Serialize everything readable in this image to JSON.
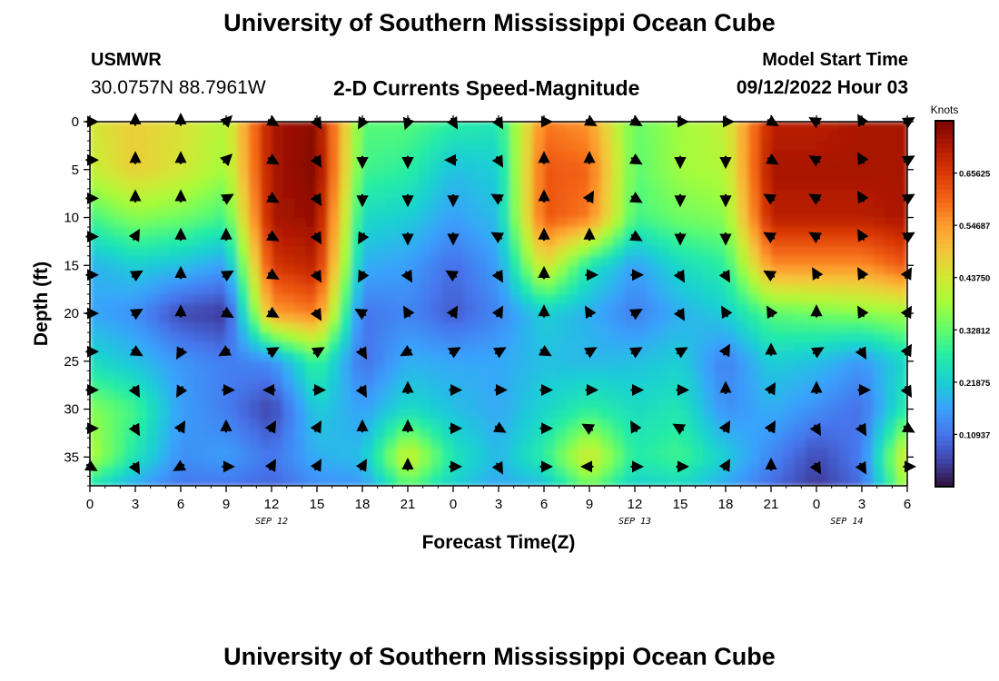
{
  "header": {
    "title": "University of Southern Mississippi Ocean Cube",
    "station": "USMWR",
    "coordinates": "30.0757N  88.7961W",
    "subtitle": "2-D Currents Speed-Magnitude",
    "model_start_label": "Model Start Time",
    "model_start_value": "09/12/2022 Hour 03"
  },
  "footer": {
    "title": "University of Southern Mississippi Ocean Cube"
  },
  "chart_data": {
    "type": "heatmap",
    "title": "2-D Currents Speed-Magnitude",
    "xlabel": "Forecast Time(Z)",
    "ylabel": "Depth (ft)",
    "x_tick_labels": [
      "0",
      "3",
      "6",
      "9",
      "12",
      "15",
      "18",
      "21",
      "0",
      "3",
      "6",
      "9",
      "12",
      "15",
      "18",
      "21",
      "0",
      "3",
      "6"
    ],
    "x_range_hours": [
      0,
      54
    ],
    "date_labels": [
      {
        "label": "SEP 12",
        "hour": 12
      },
      {
        "label": "SEP 13",
        "hour": 36
      },
      {
        "label": "SEP 14",
        "hour": 50
      }
    ],
    "y_ticks": [
      0,
      5,
      10,
      15,
      20,
      25,
      30,
      35
    ],
    "ylim": [
      0,
      38
    ],
    "colorbar": {
      "label": "Knots",
      "tick_values": [
        0.65625,
        0.546875,
        0.4375,
        0.328125,
        0.21875,
        0.109375
      ],
      "tick_labels": [
        "0.65625",
        "0.54687",
        "0.43750",
        "0.32812",
        "0.21875",
        "0.10937"
      ],
      "range": [
        0,
        0.765625
      ],
      "colors": [
        "#30123b",
        "#4145ab",
        "#4675ed",
        "#39a2fc",
        "#1bcfd4",
        "#24eca6",
        "#61fc6c",
        "#a4fc3b",
        "#d1e834",
        "#f3c63a",
        "#fe9b2d",
        "#f36315",
        "#d93806",
        "#b11901",
        "#7a0403"
      ]
    },
    "speed_grid": {
      "depths_ft": [
        0,
        5,
        10,
        15,
        20,
        25,
        30,
        35,
        38
      ],
      "hours": [
        0,
        3,
        6,
        9,
        12,
        15,
        18,
        21,
        24,
        27,
        30,
        33,
        36,
        39,
        42,
        45,
        48,
        51,
        54
      ],
      "values_knots": [
        [
          0.44,
          0.48,
          0.45,
          0.4,
          0.72,
          0.75,
          0.32,
          0.32,
          0.28,
          0.26,
          0.58,
          0.55,
          0.33,
          0.38,
          0.42,
          0.7,
          0.7,
          0.72,
          0.72
        ],
        [
          0.42,
          0.48,
          0.44,
          0.38,
          0.72,
          0.76,
          0.3,
          0.28,
          0.2,
          0.22,
          0.62,
          0.6,
          0.32,
          0.38,
          0.4,
          0.72,
          0.72,
          0.72,
          0.72
        ],
        [
          0.3,
          0.36,
          0.34,
          0.3,
          0.72,
          0.74,
          0.24,
          0.22,
          0.16,
          0.2,
          0.62,
          0.58,
          0.3,
          0.34,
          0.36,
          0.7,
          0.7,
          0.7,
          0.72
        ],
        [
          0.18,
          0.22,
          0.2,
          0.16,
          0.66,
          0.7,
          0.18,
          0.16,
          0.1,
          0.16,
          0.46,
          0.26,
          0.16,
          0.24,
          0.28,
          0.56,
          0.56,
          0.56,
          0.62
        ],
        [
          0.17,
          0.14,
          0.06,
          0.04,
          0.54,
          0.58,
          0.11,
          0.13,
          0.08,
          0.13,
          0.22,
          0.18,
          0.12,
          0.18,
          0.22,
          0.32,
          0.34,
          0.36,
          0.38
        ],
        [
          0.24,
          0.2,
          0.15,
          0.12,
          0.14,
          0.3,
          0.1,
          0.18,
          0.17,
          0.17,
          0.2,
          0.19,
          0.2,
          0.22,
          0.12,
          0.22,
          0.2,
          0.15,
          0.24
        ],
        [
          0.36,
          0.3,
          0.16,
          0.12,
          0.05,
          0.22,
          0.16,
          0.24,
          0.2,
          0.17,
          0.23,
          0.28,
          0.24,
          0.26,
          0.14,
          0.18,
          0.14,
          0.1,
          0.28
        ],
        [
          0.4,
          0.26,
          0.14,
          0.16,
          0.11,
          0.18,
          0.2,
          0.44,
          0.26,
          0.19,
          0.28,
          0.45,
          0.27,
          0.3,
          0.22,
          0.13,
          0.06,
          0.12,
          0.46
        ],
        [
          0.26,
          0.17,
          0.11,
          0.11,
          0.09,
          0.14,
          0.15,
          0.32,
          0.22,
          0.17,
          0.2,
          0.34,
          0.22,
          0.24,
          0.17,
          0.1,
          0.04,
          0.1,
          0.4
        ]
      ]
    },
    "current_vectors": {
      "depths_ft": [
        0,
        4,
        8,
        12,
        16,
        20,
        24,
        28,
        32,
        36
      ],
      "hours": [
        0,
        3,
        6,
        9,
        12,
        15,
        18,
        21,
        24,
        27,
        30,
        33,
        36,
        39,
        42,
        45,
        48,
        51,
        54
      ],
      "directions_deg": [
        [
          90,
          0,
          0,
          45,
          120,
          150,
          210,
          200,
          150,
          150,
          90,
          120,
          120,
          90,
          90,
          120,
          300,
          330,
          60
        ],
        [
          90,
          0,
          0,
          45,
          120,
          150,
          180,
          180,
          270,
          150,
          0,
          0,
          120,
          180,
          180,
          120,
          300,
          330,
          60
        ],
        [
          90,
          0,
          0,
          60,
          120,
          150,
          180,
          180,
          180,
          300,
          0,
          30,
          120,
          180,
          180,
          300,
          300,
          330,
          60
        ],
        [
          90,
          30,
          0,
          0,
          120,
          150,
          210,
          180,
          180,
          300,
          0,
          0,
          120,
          180,
          180,
          300,
          300,
          330,
          60
        ],
        [
          90,
          60,
          0,
          60,
          120,
          150,
          210,
          150,
          300,
          150,
          0,
          90,
          90,
          150,
          150,
          300,
          330,
          330,
          30
        ],
        [
          90,
          60,
          0,
          120,
          120,
          150,
          300,
          330,
          30,
          30,
          0,
          330,
          60,
          150,
          330,
          330,
          0,
          330,
          30
        ],
        [
          90,
          120,
          210,
          240,
          60,
          60,
          150,
          240,
          60,
          60,
          120,
          60,
          60,
          60,
          30,
          0,
          60,
          150,
          30
        ],
        [
          90,
          150,
          210,
          90,
          270,
          90,
          150,
          0,
          90,
          90,
          90,
          90,
          90,
          90,
          0,
          30,
          0,
          90,
          150
        ],
        [
          90,
          150,
          30,
          0,
          30,
          30,
          0,
          0,
          90,
          120,
          90,
          300,
          330,
          300,
          30,
          30,
          150,
          150,
          120
        ],
        [
          120,
          150,
          240,
          90,
          30,
          30,
          30,
          0,
          90,
          150,
          90,
          270,
          90,
          90,
          30,
          0,
          150,
          150,
          90
        ]
      ]
    }
  }
}
